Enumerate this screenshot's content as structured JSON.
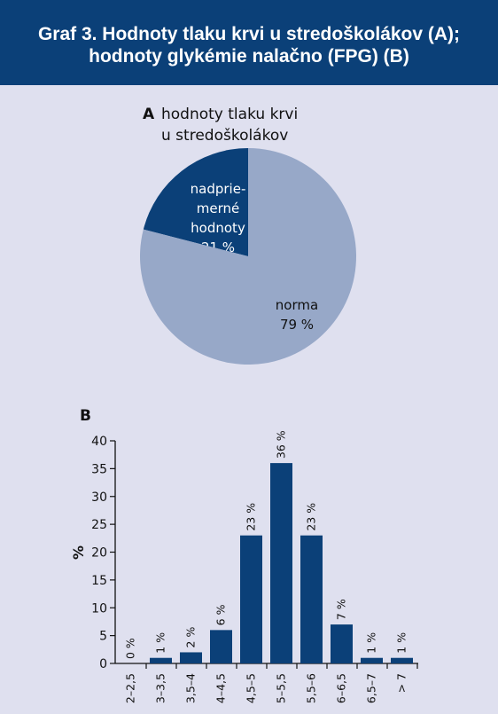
{
  "header": {
    "title_line1": "Graf 3. Hodnoty tlaku krvi u stredoškolákov (A);",
    "title_line2": "hodnoty glykémie nalačno (FPG) (B)"
  },
  "colors": {
    "header_bg": "#0b4078",
    "panel_bg": "#dfe0ef",
    "dark_blue": "#0b4078",
    "light_blue": "#97a8c8"
  },
  "chart_data": [
    {
      "type": "pie",
      "panel_label": "A",
      "title_line1": "hodnoty tlaku krvi",
      "title_line2": "u stredoškolákov",
      "slices": [
        {
          "label_lines": [
            "nadprie-",
            "merné",
            "hodnoty"
          ],
          "value_label": "21 %",
          "value": 21,
          "color": "#0b4078"
        },
        {
          "label_lines": [
            "norma"
          ],
          "value_label": "79 %",
          "value": 79,
          "color": "#97a8c8"
        }
      ]
    },
    {
      "type": "bar",
      "panel_label": "B",
      "ylabel": "%",
      "ylim": [
        0,
        40
      ],
      "yticks": [
        0,
        5,
        10,
        15,
        20,
        25,
        30,
        35,
        40
      ],
      "categories": [
        "2–2,5",
        "3–3,5",
        "3,5–4",
        "4–4,5",
        "4,5–5",
        "5–5,5",
        "5,5–6",
        "6–6,5",
        "6,5–7",
        "> 7"
      ],
      "values": [
        0,
        1,
        2,
        6,
        23,
        36,
        23,
        7,
        1,
        1
      ],
      "data_labels": [
        "0 %",
        "1 %",
        "2 %",
        "6 %",
        "23 %",
        "36 %",
        "23 %",
        "7 %",
        "1 %",
        "1 %"
      ],
      "bar_color": "#0b4078"
    }
  ]
}
